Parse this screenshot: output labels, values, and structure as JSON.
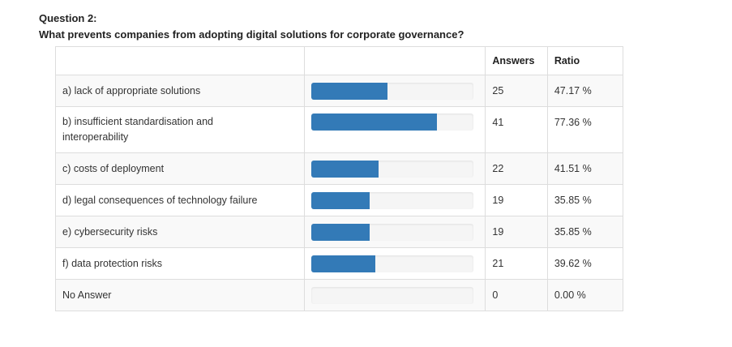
{
  "question": {
    "number": "Question 2:",
    "text": "What prevents companies from adopting digital solutions for corporate governance?"
  },
  "table": {
    "headers": {
      "option": "",
      "bar": "",
      "answers": "Answers",
      "ratio": "Ratio"
    },
    "rows": [
      {
        "label": "a) lack of appropriate solutions",
        "answers": "25",
        "ratio": "47.17 %",
        "fraction": 0.4717
      },
      {
        "label": "b) insufficient standardisation and interoperability",
        "answers": "41",
        "ratio": "77.36 %",
        "fraction": 0.7736
      },
      {
        "label": "c) costs of deployment",
        "answers": "22",
        "ratio": "41.51 %",
        "fraction": 0.4151
      },
      {
        "label": "d) legal consequences of technology failure",
        "answers": "19",
        "ratio": "35.85 %",
        "fraction": 0.3585
      },
      {
        "label": "e) cybersecurity risks",
        "answers": "19",
        "ratio": "35.85 %",
        "fraction": 0.3585
      },
      {
        "label": "f) data protection risks",
        "answers": "21",
        "ratio": "39.62 %",
        "fraction": 0.3962
      },
      {
        "label": "No Answer",
        "answers": "0",
        "ratio": "0.00 %",
        "fraction": 0
      }
    ]
  },
  "colors": {
    "bar_fill": "#337ab7",
    "bar_track": "#f5f5f5",
    "border": "#dddddd"
  }
}
